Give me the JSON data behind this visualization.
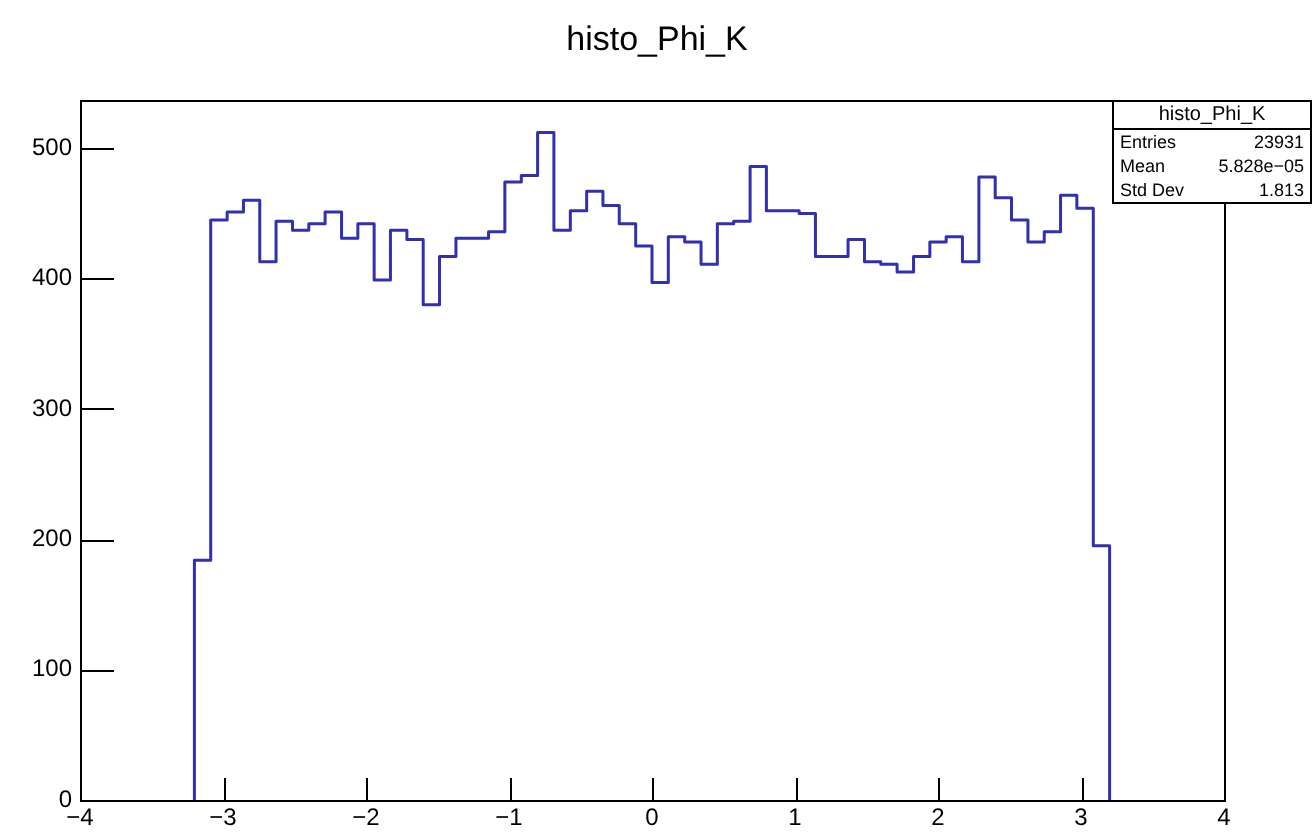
{
  "chart_data": {
    "type": "histogram",
    "title": "histo_Phi_K",
    "bins": [
      -3.2,
      -3.086,
      -2.971,
      -2.857,
      -2.743,
      -2.629,
      -2.514,
      -2.4,
      -2.286,
      -2.171,
      -2.057,
      -1.943,
      -1.829,
      -1.714,
      -1.6,
      -1.486,
      -1.371,
      -1.257,
      -1.143,
      -1.029,
      -0.914,
      -0.8,
      -0.686,
      -0.571,
      -0.457,
      -0.343,
      -0.229,
      -0.114,
      0,
      0.114,
      0.229,
      0.343,
      0.457,
      0.571,
      0.686,
      0.8,
      0.914,
      1.029,
      1.143,
      1.257,
      1.371,
      1.486,
      1.6,
      1.714,
      1.829,
      1.943,
      2.057,
      2.171,
      2.286,
      2.4,
      2.514,
      2.629,
      2.743,
      2.857,
      2.971,
      3.086,
      3.2
    ],
    "values": [
      184,
      445,
      451,
      460,
      413,
      444,
      437,
      442,
      451,
      431,
      442,
      399,
      437,
      430,
      380,
      417,
      431,
      431,
      436,
      474,
      479,
      512,
      437,
      452,
      467,
      456,
      442,
      425,
      397,
      432,
      428,
      411,
      442,
      444,
      486,
      452,
      452,
      450,
      417,
      417,
      430,
      413,
      411,
      405,
      417,
      428,
      432,
      413,
      478,
      462,
      445,
      428,
      436,
      464,
      454,
      195
    ],
    "color": "#3030b0",
    "xlim": [
      -4,
      4
    ],
    "xticks": [
      -4,
      -3,
      -2,
      -1,
      0,
      1,
      2,
      3,
      4
    ],
    "ylim": [
      0,
      537
    ],
    "yticks": [
      0,
      100,
      200,
      300,
      400,
      500
    ],
    "grid": false,
    "legend": false,
    "annotations": [
      "histo_Phi_K",
      "Entries 23931",
      "Mean 5.828e−05",
      "Std Dev 1.813"
    ]
  }
}
